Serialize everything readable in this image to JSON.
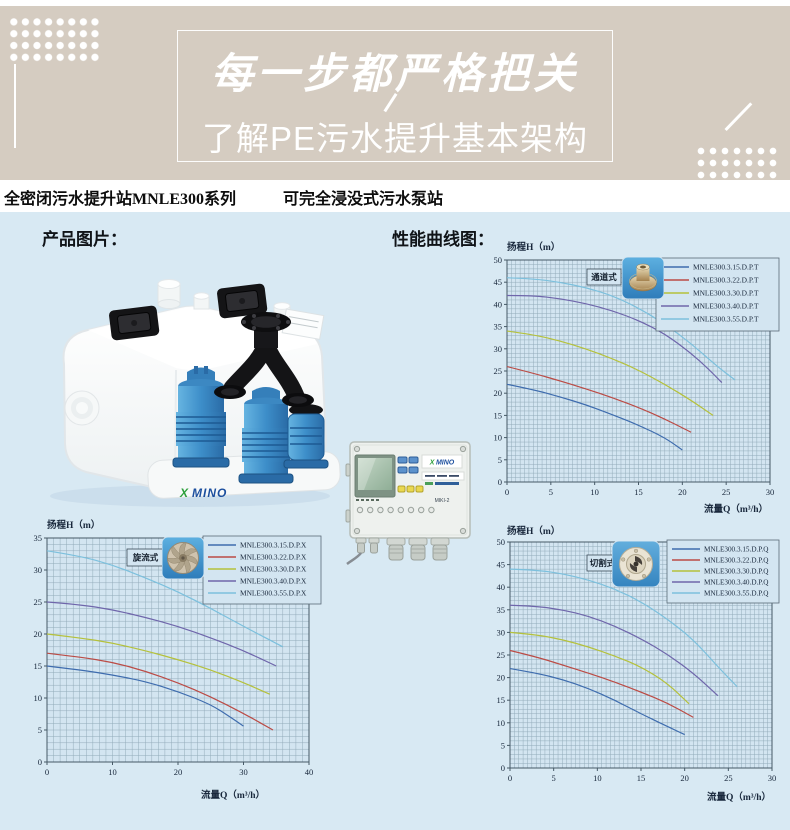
{
  "banner": {
    "title": "每一步都严格把关",
    "subtitle": "了解PE污水提升基本架构"
  },
  "header": {
    "series_title": "全密闭污水提升站MNLE300系列",
    "sub_title": "可完全浸没式污水泵站"
  },
  "sections": {
    "product_label": "产品图片：",
    "curves_label": "性能曲线图："
  },
  "product": {
    "tank_logo_x": "X",
    "tank_logo_name": "MINO",
    "controller_logo_x": "X",
    "controller_logo_name": "MINO",
    "controller_model": "MIKI-2"
  },
  "chart_style": {
    "plot_bg": "#d3e5f1",
    "grid_color": "#7d98a7",
    "axis_color": "#465966",
    "text_color": "#18273b",
    "legend_border": "#5a6b77"
  },
  "chart_data": [
    {
      "type": "line",
      "variant_label": "通道式",
      "impeller_icon": "channel-impeller-photo",
      "ylabel": "扬程H（m）",
      "xlabel": "流量Q（m³/h）",
      "xlim": [
        0,
        30
      ],
      "ylim": [
        0,
        50
      ],
      "xticks": [
        0,
        5,
        10,
        15,
        20,
        25,
        30
      ],
      "yticks": [
        0,
        5,
        10,
        15,
        20,
        25,
        30,
        35,
        40,
        45,
        50
      ],
      "minor_x": 0.5,
      "minor_y": 1,
      "legend_position": "top-right",
      "series": [
        {
          "name": "MNLE300.3.15.D.P.T",
          "color": "#3e6cae",
          "points": [
            [
              0,
              22
            ],
            [
              3,
              20.8
            ],
            [
              6,
              19.2
            ],
            [
              9,
              17.4
            ],
            [
              12,
              15.2
            ],
            [
              15,
              12.8
            ],
            [
              18,
              10
            ],
            [
              20,
              7.2
            ]
          ]
        },
        {
          "name": "MNLE300.3.22.D.P.T",
          "color": "#bb4b45",
          "points": [
            [
              0,
              26
            ],
            [
              3,
              24.5
            ],
            [
              6,
              22.8
            ],
            [
              9,
              21
            ],
            [
              12,
              19
            ],
            [
              15,
              16.8
            ],
            [
              18,
              14.2
            ],
            [
              21,
              11.2
            ]
          ]
        },
        {
          "name": "MNLE300.3.30.D.P.T",
          "color": "#b5c13b",
          "points": [
            [
              0,
              34
            ],
            [
              3,
              33.2
            ],
            [
              6,
              31.8
            ],
            [
              9,
              30
            ],
            [
              12,
              27.8
            ],
            [
              15,
              25.2
            ],
            [
              18,
              22
            ],
            [
              21,
              18.4
            ],
            [
              23.5,
              15
            ]
          ]
        },
        {
          "name": "MNLE300.3.40.D.P.T",
          "color": "#6f66ab",
          "points": [
            [
              0,
              42
            ],
            [
              3,
              42
            ],
            [
              6,
              41.3
            ],
            [
              9,
              40.2
            ],
            [
              12,
              38.6
            ],
            [
              15,
              36.4
            ],
            [
              18,
              33.4
            ],
            [
              21,
              29
            ],
            [
              23,
              25.4
            ],
            [
              24.5,
              22.4
            ]
          ]
        },
        {
          "name": "MNLE300.3.55.D.P.T",
          "color": "#7cc0dd",
          "points": [
            [
              0,
              46
            ],
            [
              3,
              45.8
            ],
            [
              6,
              45
            ],
            [
              9,
              43.8
            ],
            [
              12,
              42
            ],
            [
              15,
              39.2
            ],
            [
              18,
              35.6
            ],
            [
              21,
              31.2
            ],
            [
              24,
              26
            ],
            [
              26,
              23
            ]
          ]
        }
      ]
    },
    {
      "type": "line",
      "variant_label": "旋流式",
      "impeller_icon": "vortex-impeller-photo",
      "ylabel": "扬程H（m）",
      "xlabel": "流量Q（m³/h）",
      "xlim": [
        0,
        40
      ],
      "ylim": [
        0,
        35
      ],
      "xticks": [
        0,
        10,
        20,
        30,
        40
      ],
      "yticks": [
        0,
        5,
        10,
        15,
        20,
        25,
        30,
        35
      ],
      "minor_x": 1,
      "minor_y": 1,
      "legend_position": "top-right",
      "series": [
        {
          "name": "MNLE300.3.15.D.P.X",
          "color": "#3e6cae",
          "points": [
            [
              0,
              15
            ],
            [
              5,
              14.4
            ],
            [
              10,
              13.6
            ],
            [
              15,
              12.6
            ],
            [
              20,
              11
            ],
            [
              25,
              9
            ],
            [
              28,
              7
            ],
            [
              30,
              5.6
            ]
          ]
        },
        {
          "name": "MNLE300.3.22.D.P.X",
          "color": "#bb4b45",
          "points": [
            [
              0,
              17
            ],
            [
              5,
              16.4
            ],
            [
              10,
              15.6
            ],
            [
              15,
              14.2
            ],
            [
              20,
              12.4
            ],
            [
              25,
              10.2
            ],
            [
              30,
              7.6
            ],
            [
              34.5,
              5
            ]
          ]
        },
        {
          "name": "MNLE300.3.30.D.P.X",
          "color": "#b5c13b",
          "points": [
            [
              0,
              20
            ],
            [
              5,
              19.4
            ],
            [
              10,
              18.6
            ],
            [
              15,
              17.4
            ],
            [
              20,
              16
            ],
            [
              25,
              14.4
            ],
            [
              30,
              12.4
            ],
            [
              34,
              10.6
            ]
          ]
        },
        {
          "name": "MNLE300.3.40.D.P.X",
          "color": "#6f66ab",
          "points": [
            [
              0,
              25
            ],
            [
              5,
              24.6
            ],
            [
              10,
              23.8
            ],
            [
              15,
              22.6
            ],
            [
              20,
              21.2
            ],
            [
              25,
              19.4
            ],
            [
              30,
              17.4
            ],
            [
              35,
              15
            ]
          ]
        },
        {
          "name": "MNLE300.3.55.D.P.X",
          "color": "#7cc0dd",
          "points": [
            [
              0,
              33
            ],
            [
              5,
              32.2
            ],
            [
              10,
              30.8
            ],
            [
              15,
              28.8
            ],
            [
              20,
              26.6
            ],
            [
              25,
              24
            ],
            [
              30,
              21.2
            ],
            [
              36,
              18
            ]
          ]
        }
      ]
    },
    {
      "type": "line",
      "variant_label": "切割式",
      "impeller_icon": "cutter-impeller-photo",
      "ylabel": "扬程H（m）",
      "xlabel": "流量Q（m³/h）",
      "xlim": [
        0,
        30
      ],
      "ylim": [
        0,
        50
      ],
      "xticks": [
        0,
        5,
        10,
        15,
        20,
        25,
        30
      ],
      "yticks": [
        0,
        5,
        10,
        15,
        20,
        25,
        30,
        35,
        40,
        45,
        50
      ],
      "minor_x": 0.5,
      "minor_y": 1,
      "legend_position": "top-right",
      "series": [
        {
          "name": "MNLE300.3.15.D.P.Q",
          "color": "#3e6cae",
          "points": [
            [
              0,
              22
            ],
            [
              3,
              21
            ],
            [
              6,
              19.6
            ],
            [
              9,
              17.6
            ],
            [
              12,
              15
            ],
            [
              15,
              12
            ],
            [
              18,
              9.2
            ],
            [
              20,
              7.4
            ]
          ]
        },
        {
          "name": "MNLE300.3.22.D.P.Q",
          "color": "#bb4b45",
          "points": [
            [
              0,
              26
            ],
            [
              3,
              24.6
            ],
            [
              6,
              22.8
            ],
            [
              9,
              21
            ],
            [
              12,
              19
            ],
            [
              15,
              16.8
            ],
            [
              18,
              14.4
            ],
            [
              21,
              11.2
            ]
          ]
        },
        {
          "name": "MNLE300.3.30.D.P.Q",
          "color": "#b5c13b",
          "points": [
            [
              0,
              30
            ],
            [
              3,
              29.5
            ],
            [
              6,
              28.4
            ],
            [
              9,
              26.8
            ],
            [
              12,
              24.8
            ],
            [
              15,
              22.4
            ],
            [
              18,
              18.8
            ],
            [
              20.5,
              14.2
            ]
          ]
        },
        {
          "name": "MNLE300.3.40.D.P.Q",
          "color": "#6f66ab",
          "points": [
            [
              0,
              36
            ],
            [
              3,
              35.8
            ],
            [
              6,
              35
            ],
            [
              9,
              33.6
            ],
            [
              12,
              31.4
            ],
            [
              15,
              28.6
            ],
            [
              18,
              25.2
            ],
            [
              21,
              21
            ],
            [
              23.8,
              16
            ]
          ]
        },
        {
          "name": "MNLE300.3.55.D.P.Q",
          "color": "#7cc0dd",
          "points": [
            [
              0,
              44
            ],
            [
              3,
              43.8
            ],
            [
              6,
              43
            ],
            [
              9,
              41.6
            ],
            [
              12,
              39.6
            ],
            [
              15,
              36.8
            ],
            [
              18,
              33
            ],
            [
              21,
              28.4
            ],
            [
              24,
              22
            ],
            [
              26,
              18
            ]
          ]
        }
      ]
    }
  ]
}
